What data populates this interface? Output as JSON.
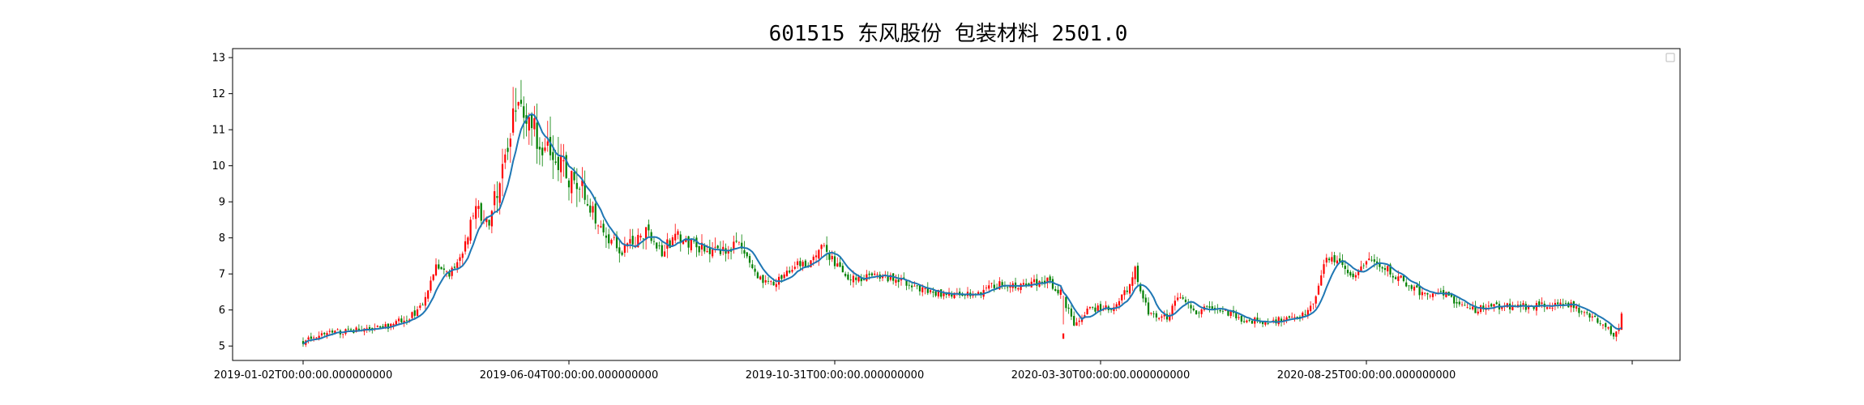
{
  "chart_data": {
    "type": "candlestick",
    "title": "601515 东风股份 包装材料 2501.0",
    "xlabel": "",
    "ylabel": "",
    "ylim": [
      4.6,
      13.25
    ],
    "y_ticks": [
      5,
      6,
      7,
      8,
      9,
      10,
      11,
      12,
      13
    ],
    "x_tick_labels": [
      "2019-01-02T00:00:00.000000000",
      "2019-06-04T00:00:00.000000000",
      "2019-10-31T00:00:00.000000000",
      "2020-03-30T00:00:00.000000000",
      "2020-08-25T00:00:00.000000000",
      ""
    ],
    "x_tick_positions": [
      0,
      100,
      200,
      300,
      400,
      500
    ],
    "num_bars": 497,
    "close_keyframes": [
      [
        0,
        5.1
      ],
      [
        5,
        5.3
      ],
      [
        15,
        5.4
      ],
      [
        30,
        5.5
      ],
      [
        40,
        5.8
      ],
      [
        45,
        6.1
      ],
      [
        50,
        7.2
      ],
      [
        55,
        7.0
      ],
      [
        60,
        7.6
      ],
      [
        65,
        8.8
      ],
      [
        70,
        8.5
      ],
      [
        75,
        10.0
      ],
      [
        80,
        11.5
      ],
      [
        85,
        11.2
      ],
      [
        90,
        10.6
      ],
      [
        95,
        10.4
      ],
      [
        100,
        9.7
      ],
      [
        105,
        9.3
      ],
      [
        110,
        8.6
      ],
      [
        115,
        8.0
      ],
      [
        120,
        7.6
      ],
      [
        125,
        7.9
      ],
      [
        130,
        8.2
      ],
      [
        135,
        7.6
      ],
      [
        140,
        8.1
      ],
      [
        145,
        7.8
      ],
      [
        155,
        7.6
      ],
      [
        165,
        7.8
      ],
      [
        170,
        7.0
      ],
      [
        175,
        6.7
      ],
      [
        180,
        6.9
      ],
      [
        185,
        7.3
      ],
      [
        190,
        7.2
      ],
      [
        195,
        7.8
      ],
      [
        200,
        7.3
      ],
      [
        205,
        6.8
      ],
      [
        215,
        7.0
      ],
      [
        225,
        6.8
      ],
      [
        235,
        6.5
      ],
      [
        245,
        6.4
      ],
      [
        255,
        6.5
      ],
      [
        260,
        6.7
      ],
      [
        270,
        6.7
      ],
      [
        280,
        6.8
      ],
      [
        285,
        6.5
      ],
      [
        290,
        5.6
      ],
      [
        295,
        6.0
      ],
      [
        305,
        6.1
      ],
      [
        310,
        6.6
      ],
      [
        313,
        7.1
      ],
      [
        318,
        5.9
      ],
      [
        325,
        5.8
      ],
      [
        330,
        6.4
      ],
      [
        335,
        5.9
      ],
      [
        340,
        6.1
      ],
      [
        345,
        6.0
      ],
      [
        355,
        5.7
      ],
      [
        365,
        5.7
      ],
      [
        375,
        5.8
      ],
      [
        380,
        6.2
      ],
      [
        385,
        7.5
      ],
      [
        390,
        7.3
      ],
      [
        395,
        6.9
      ],
      [
        400,
        7.4
      ],
      [
        405,
        7.3
      ],
      [
        410,
        7.0
      ],
      [
        420,
        6.5
      ],
      [
        430,
        6.4
      ],
      [
        440,
        6.0
      ],
      [
        450,
        6.1
      ],
      [
        465,
        6.1
      ],
      [
        475,
        6.2
      ],
      [
        480,
        6.0
      ],
      [
        485,
        5.8
      ],
      [
        490,
        5.5
      ],
      [
        493,
        5.3
      ],
      [
        496,
        5.5
      ]
    ],
    "spike_bars": [
      [
        286,
        5.2,
        6.4,
        5.6,
        5.35
      ],
      [
        496,
        5.45,
        5.95,
        5.45,
        5.9
      ]
    ],
    "ma_line_color": "#1f77b4",
    "up_color": "#ff0000",
    "down_color": "#008000",
    "grid": false,
    "legend_position": "top-right"
  }
}
